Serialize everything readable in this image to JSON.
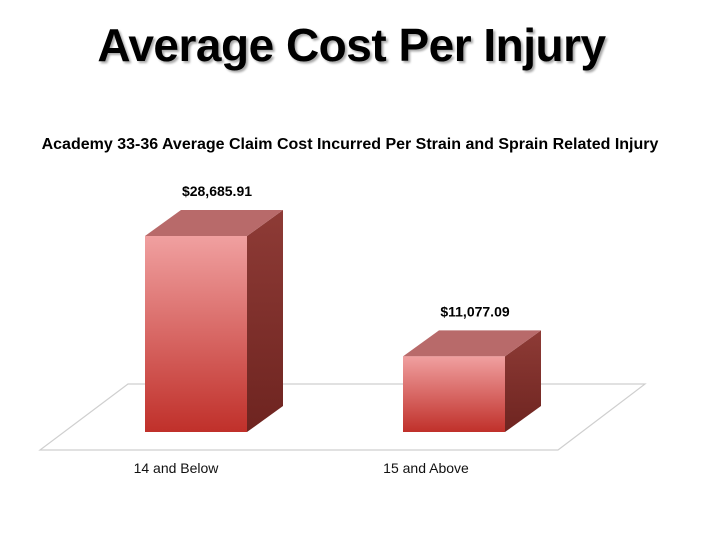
{
  "slide": {
    "title": "Average Cost Per Injury"
  },
  "chart_data": {
    "type": "bar",
    "title": "Academy 33-36 Average Claim Cost Incurred Per Strain and Sprain Related Injury",
    "categories": [
      "14 and Below",
      "15 and Above"
    ],
    "values": [
      28685.91,
      11077.09
    ],
    "data_labels": [
      "$28,685.91",
      "$11,077.09"
    ],
    "xlabel": "",
    "ylabel": "",
    "ylim": [
      0,
      30000
    ],
    "grid": false,
    "legend": "none",
    "colors": {
      "bar_front_top": "#f0a0a0",
      "bar_front_bottom": "#c0302a",
      "bar_top": "#b86a6a",
      "bar_side": "#8e3b36",
      "floor_stroke": "#cfcfcf"
    }
  }
}
